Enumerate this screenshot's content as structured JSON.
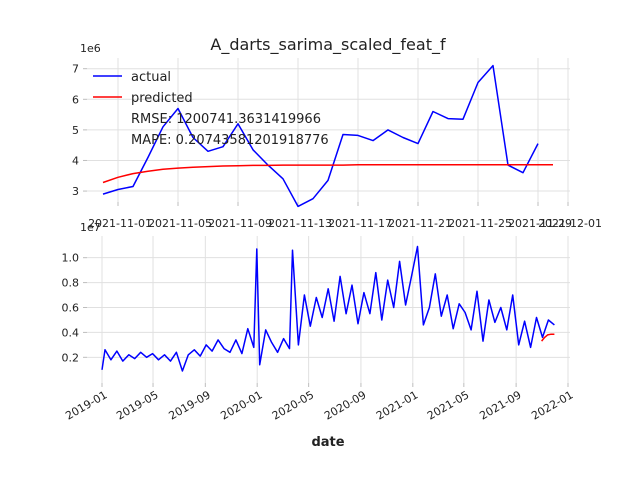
{
  "chart_data": [
    {
      "type": "line",
      "title": "A_darts_sarima_scaled_feat_f",
      "y_exponent": "1e6",
      "x_tick_labels": [
        "2021-11-01",
        "2021-11-05",
        "2021-11-09",
        "2021-11-13",
        "2021-11-17",
        "2021-11-21",
        "2021-11-25",
        "2021-11-29",
        "2021-12-01"
      ],
      "y_tick_labels": [
        "3",
        "4",
        "5",
        "6",
        "7"
      ],
      "ylim": [
        2.25,
        7.35
      ],
      "grid": true,
      "legend_location": "top-left",
      "annotations": [
        "RMSE: 1200741.3631419966",
        "MAPE: 0.20743581201918776"
      ],
      "series": [
        {
          "name": "actual",
          "color": "#0000ff",
          "x": [
            "2021-10-31",
            "2021-11-01",
            "2021-11-02",
            "2021-11-03",
            "2021-11-04",
            "2021-11-05",
            "2021-11-06",
            "2021-11-07",
            "2021-11-08",
            "2021-11-09",
            "2021-11-10",
            "2021-11-11",
            "2021-11-12",
            "2021-11-13",
            "2021-11-14",
            "2021-11-15",
            "2021-11-16",
            "2021-11-17",
            "2021-11-18",
            "2021-11-19",
            "2021-11-20",
            "2021-11-21",
            "2021-11-22",
            "2021-11-23",
            "2021-11-24",
            "2021-11-25",
            "2021-11-26",
            "2021-11-27",
            "2021-11-28",
            "2021-11-29"
          ],
          "values": [
            2.9,
            3.05,
            3.15,
            4.1,
            5.1,
            5.7,
            4.75,
            4.3,
            4.45,
            5.2,
            4.35,
            3.85,
            3.4,
            2.5,
            2.75,
            3.35,
            4.85,
            4.82,
            4.65,
            5.0,
            4.75,
            4.55,
            5.6,
            5.37,
            5.35,
            6.55,
            7.1,
            3.85,
            3.6,
            4.55
          ]
        },
        {
          "name": "predicted",
          "color": "#ff0000",
          "x": [
            "2021-10-31",
            "2021-11-01",
            "2021-11-02",
            "2021-11-03",
            "2021-11-04",
            "2021-11-05",
            "2021-11-06",
            "2021-11-07",
            "2021-11-08",
            "2021-11-09",
            "2021-11-10",
            "2021-11-11",
            "2021-11-12",
            "2021-11-13",
            "2021-11-14",
            "2021-11-15",
            "2021-11-16",
            "2021-11-17",
            "2021-11-18",
            "2021-11-19",
            "2021-11-20",
            "2021-11-21",
            "2021-11-22",
            "2021-11-23",
            "2021-11-24",
            "2021-11-25",
            "2021-11-26",
            "2021-11-27",
            "2021-11-28",
            "2021-11-29",
            "2021-11-30"
          ],
          "values": [
            3.28,
            3.45,
            3.57,
            3.65,
            3.71,
            3.75,
            3.78,
            3.8,
            3.82,
            3.83,
            3.84,
            3.84,
            3.85,
            3.85,
            3.85,
            3.85,
            3.85,
            3.86,
            3.86,
            3.86,
            3.86,
            3.86,
            3.86,
            3.86,
            3.86,
            3.86,
            3.86,
            3.86,
            3.86,
            3.86,
            3.86
          ]
        }
      ]
    },
    {
      "type": "line",
      "xlabel": "date",
      "y_exponent": "1e7",
      "x_tick_labels": [
        "2019-01",
        "2019-05",
        "2019-09",
        "2020-01",
        "2020-05",
        "2020-09",
        "2021-01",
        "2021-05",
        "2021-09",
        "2022-01"
      ],
      "y_tick_labels": [
        "0.2",
        "0.4",
        "0.6",
        "0.8",
        "1.0"
      ],
      "ylim": [
        0.05,
        1.15
      ],
      "grid": true,
      "series": [
        {
          "name": "actual",
          "color": "#0000ff",
          "x": [
            "2019-01-01",
            "2019-01-08",
            "2019-01-22",
            "2019-02-05",
            "2019-02-19",
            "2019-03-05",
            "2019-03-19",
            "2019-04-02",
            "2019-04-16",
            "2019-04-30",
            "2019-05-14",
            "2019-05-28",
            "2019-06-11",
            "2019-06-25",
            "2019-07-09",
            "2019-07-23",
            "2019-08-06",
            "2019-08-20",
            "2019-09-03",
            "2019-09-17",
            "2019-10-01",
            "2019-10-15",
            "2019-10-29",
            "2019-11-12",
            "2019-11-26",
            "2019-12-10",
            "2019-12-24",
            "2019-12-31",
            "2020-01-07",
            "2020-01-21",
            "2020-02-04",
            "2020-02-18",
            "2020-03-03",
            "2020-03-17",
            "2020-03-24",
            "2020-04-07",
            "2020-04-21",
            "2020-05-05",
            "2020-05-19",
            "2020-06-02",
            "2020-06-16",
            "2020-06-30",
            "2020-07-14",
            "2020-07-28",
            "2020-08-11",
            "2020-08-25",
            "2020-09-08",
            "2020-09-22",
            "2020-10-06",
            "2020-10-20",
            "2020-11-03",
            "2020-11-17",
            "2020-12-01",
            "2020-12-15",
            "2020-12-29",
            "2021-01-12",
            "2021-01-26",
            "2021-02-09",
            "2021-02-23",
            "2021-03-09",
            "2021-03-23",
            "2021-04-06",
            "2021-04-20",
            "2021-05-04",
            "2021-05-18",
            "2021-06-01",
            "2021-06-15",
            "2021-06-29",
            "2021-07-13",
            "2021-07-27",
            "2021-08-10",
            "2021-08-24",
            "2021-09-07",
            "2021-09-21",
            "2021-10-05",
            "2021-10-19",
            "2021-11-02",
            "2021-11-16",
            "2021-11-30"
          ],
          "values": [
            0.1,
            0.26,
            0.18,
            0.25,
            0.17,
            0.22,
            0.19,
            0.24,
            0.2,
            0.23,
            0.18,
            0.22,
            0.17,
            0.24,
            0.09,
            0.22,
            0.26,
            0.21,
            0.3,
            0.25,
            0.34,
            0.27,
            0.24,
            0.34,
            0.23,
            0.43,
            0.28,
            1.07,
            0.14,
            0.42,
            0.32,
            0.24,
            0.35,
            0.27,
            1.06,
            0.3,
            0.7,
            0.45,
            0.68,
            0.52,
            0.75,
            0.49,
            0.85,
            0.55,
            0.78,
            0.47,
            0.72,
            0.55,
            0.88,
            0.5,
            0.82,
            0.6,
            0.97,
            0.62,
            0.85,
            1.09,
            0.46,
            0.6,
            0.87,
            0.53,
            0.7,
            0.43,
            0.63,
            0.56,
            0.42,
            0.73,
            0.33,
            0.66,
            0.48,
            0.6,
            0.42,
            0.7,
            0.3,
            0.49,
            0.28,
            0.52,
            0.36,
            0.5,
            0.46
          ]
        },
        {
          "name": "predicted",
          "color": "#ff0000",
          "x": [
            "2021-10-31",
            "2021-11-07",
            "2021-11-14",
            "2021-11-21",
            "2021-11-30"
          ],
          "values": [
            0.33,
            0.36,
            0.38,
            0.385,
            0.386
          ]
        }
      ]
    }
  ]
}
